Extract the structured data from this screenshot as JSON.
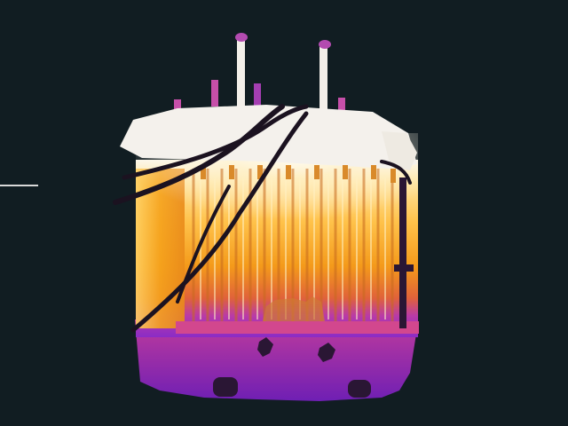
{
  "image": {
    "subject": "thermal-camera-view-of-transformer",
    "palette": {
      "background": "#111d22",
      "hot": "#f2f0ee",
      "warm": "#ffd36a",
      "mid": "#f6a21a",
      "cool": "#d4329a",
      "cold": "#7a1fb8",
      "cable": "#1b1220"
    }
  }
}
